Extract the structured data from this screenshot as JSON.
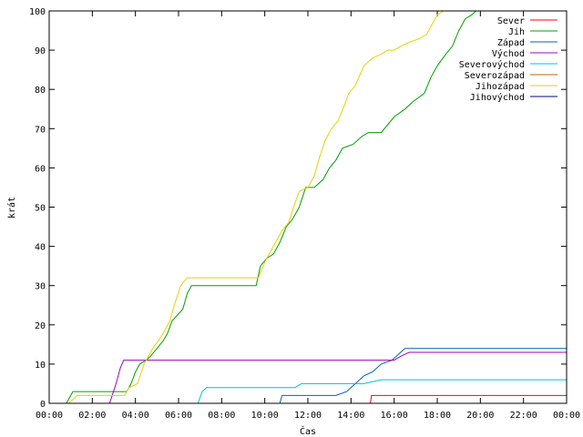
{
  "chart_data": {
    "type": "line",
    "title": "",
    "xlabel": "Čas",
    "ylabel": "krát",
    "xlim": [
      0,
      24
    ],
    "ylim": [
      0,
      100
    ],
    "x_ticks": [
      "00:00",
      "02:00",
      "04:00",
      "06:00",
      "08:00",
      "10:00",
      "12:00",
      "14:00",
      "16:00",
      "18:00",
      "20:00",
      "22:00",
      "00:00"
    ],
    "y_ticks": [
      "0",
      "10",
      "20",
      "30",
      "40",
      "50",
      "60",
      "70",
      "80",
      "90",
      "100"
    ],
    "legend_position": "top-right",
    "grid": false,
    "series": [
      {
        "name": "Sever",
        "color": "#ff0000",
        "points": [
          [
            0,
            0
          ],
          [
            14.9,
            0
          ],
          [
            14.95,
            2
          ],
          [
            24,
            2
          ]
        ]
      },
      {
        "name": "Jih",
        "color": "#00a000",
        "points": [
          [
            0,
            0
          ],
          [
            0.8,
            0
          ],
          [
            1.0,
            2
          ],
          [
            1.1,
            3
          ],
          [
            3.6,
            3
          ],
          [
            3.8,
            5
          ],
          [
            4.0,
            8
          ],
          [
            4.2,
            10
          ],
          [
            4.5,
            11
          ],
          [
            4.7,
            12
          ],
          [
            5.0,
            14
          ],
          [
            5.3,
            16
          ],
          [
            5.5,
            18
          ],
          [
            5.7,
            21
          ],
          [
            6.2,
            24
          ],
          [
            6.4,
            28
          ],
          [
            6.6,
            30
          ],
          [
            9.6,
            30
          ],
          [
            9.8,
            35
          ],
          [
            10.1,
            37
          ],
          [
            10.4,
            38
          ],
          [
            10.7,
            41
          ],
          [
            11.0,
            45
          ],
          [
            11.3,
            47
          ],
          [
            11.6,
            50
          ],
          [
            11.9,
            55
          ],
          [
            12.3,
            55
          ],
          [
            12.7,
            57
          ],
          [
            13.0,
            60
          ],
          [
            13.3,
            62
          ],
          [
            13.6,
            65
          ],
          [
            14.1,
            66
          ],
          [
            14.5,
            68
          ],
          [
            14.8,
            69
          ],
          [
            15.4,
            69
          ],
          [
            15.7,
            71
          ],
          [
            16.0,
            73
          ],
          [
            16.5,
            75
          ],
          [
            16.9,
            77
          ],
          [
            17.4,
            79
          ],
          [
            17.7,
            83
          ],
          [
            18.0,
            86
          ],
          [
            18.4,
            89
          ],
          [
            18.7,
            91
          ],
          [
            19.0,
            95
          ],
          [
            19.3,
            98
          ],
          [
            19.6,
            99
          ],
          [
            19.8,
            100
          ],
          [
            24,
            100
          ]
        ]
      },
      {
        "name": "Západ",
        "color": "#0060c0",
        "points": [
          [
            0,
            0
          ],
          [
            10.7,
            0
          ],
          [
            10.8,
            2
          ],
          [
            13.3,
            2
          ],
          [
            13.8,
            3
          ],
          [
            14.2,
            5
          ],
          [
            14.6,
            7
          ],
          [
            15.0,
            8
          ],
          [
            15.4,
            10
          ],
          [
            15.9,
            11
          ],
          [
            16.3,
            13
          ],
          [
            16.5,
            14
          ],
          [
            24,
            14
          ]
        ]
      },
      {
        "name": "Východ",
        "color": "#a000c0",
        "points": [
          [
            0,
            0
          ],
          [
            2.8,
            0
          ],
          [
            3.1,
            5
          ],
          [
            3.3,
            9
          ],
          [
            3.45,
            11
          ],
          [
            16.0,
            11
          ],
          [
            16.3,
            12
          ],
          [
            16.7,
            13
          ],
          [
            24,
            13
          ]
        ]
      },
      {
        "name": "Severovýchod",
        "color": "#00c0e0",
        "points": [
          [
            0,
            0
          ],
          [
            6.9,
            0
          ],
          [
            7.1,
            3
          ],
          [
            7.3,
            4
          ],
          [
            11.4,
            4
          ],
          [
            11.7,
            5
          ],
          [
            14.6,
            5
          ],
          [
            15.4,
            6
          ],
          [
            24,
            6
          ]
        ]
      },
      {
        "name": "Severozápad",
        "color": "#c06000",
        "points": [
          [
            0,
            0
          ],
          [
            24,
            0
          ]
        ]
      },
      {
        "name": "Jihozápad",
        "color": "#e8d000",
        "points": [
          [
            0,
            0
          ],
          [
            0.9,
            0
          ],
          [
            1.3,
            2
          ],
          [
            3.5,
            2
          ],
          [
            3.7,
            4
          ],
          [
            4.1,
            5
          ],
          [
            4.4,
            10
          ],
          [
            4.8,
            14
          ],
          [
            5.2,
            17
          ],
          [
            5.6,
            21
          ],
          [
            5.8,
            25
          ],
          [
            6.1,
            30
          ],
          [
            6.4,
            32
          ],
          [
            9.7,
            32
          ],
          [
            10.0,
            36
          ],
          [
            10.4,
            40
          ],
          [
            10.8,
            44
          ],
          [
            11.1,
            46
          ],
          [
            11.4,
            51
          ],
          [
            11.6,
            54
          ],
          [
            12.0,
            55
          ],
          [
            12.3,
            58
          ],
          [
            12.5,
            62
          ],
          [
            12.8,
            67
          ],
          [
            13.1,
            70
          ],
          [
            13.4,
            72
          ],
          [
            13.7,
            76
          ],
          [
            13.9,
            79
          ],
          [
            14.2,
            81
          ],
          [
            14.6,
            86
          ],
          [
            15.0,
            88
          ],
          [
            15.4,
            89
          ],
          [
            15.7,
            90
          ],
          [
            16.0,
            90
          ],
          [
            16.3,
            91
          ],
          [
            16.7,
            92
          ],
          [
            17.2,
            93
          ],
          [
            17.5,
            94
          ],
          [
            17.8,
            97
          ],
          [
            18.0,
            99
          ],
          [
            18.3,
            100
          ],
          [
            24,
            100
          ]
        ]
      },
      {
        "name": "Jihovýchod",
        "color": "#000080",
        "points": [
          [
            0,
            0
          ],
          [
            24,
            0
          ]
        ]
      }
    ]
  }
}
